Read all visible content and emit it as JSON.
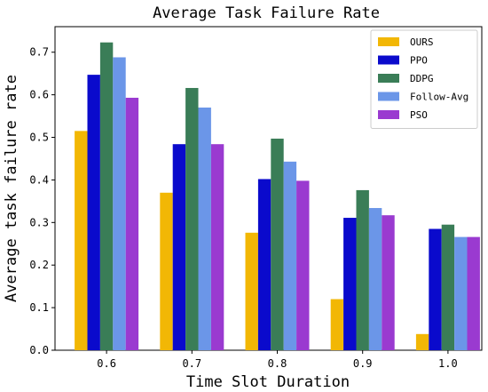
{
  "chart_data": {
    "type": "bar",
    "title": "Average Task Failure Rate",
    "xlabel": "Time Slot Duration",
    "ylabel": "Average task failure rate",
    "categories": [
      "0.6",
      "0.7",
      "0.8",
      "0.9",
      "1.0"
    ],
    "ylim": [
      0,
      0.76
    ],
    "yticks": [
      "0.0",
      "0.1",
      "0.2",
      "0.3",
      "0.4",
      "0.5",
      "0.6",
      "0.7"
    ],
    "grid": false,
    "legend_position": "top-right",
    "series": [
      {
        "name": "OURS",
        "color": "#f2b705",
        "values": [
          0.515,
          0.37,
          0.276,
          0.12,
          0.038
        ]
      },
      {
        "name": "PPO",
        "color": "#0a0acc",
        "values": [
          0.647,
          0.484,
          0.402,
          0.311,
          0.285
        ]
      },
      {
        "name": "DDPG",
        "color": "#3a7d57",
        "values": [
          0.723,
          0.616,
          0.497,
          0.376,
          0.295
        ]
      },
      {
        "name": "Follow-Avg",
        "color": "#6b96e8",
        "values": [
          0.688,
          0.57,
          0.443,
          0.334,
          0.266
        ]
      },
      {
        "name": "PSO",
        "color": "#9a3ad0",
        "values": [
          0.593,
          0.484,
          0.398,
          0.317,
          0.266
        ]
      }
    ]
  }
}
